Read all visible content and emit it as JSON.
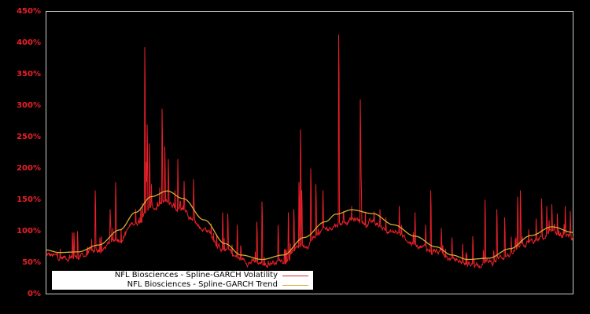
{
  "chart_data": {
    "type": "line",
    "title": "",
    "xlabel": "",
    "ylabel": "",
    "ylim": [
      0,
      450
    ],
    "y_tick_labels": [
      "0%",
      "50%",
      "100%",
      "150%",
      "200%",
      "250%",
      "300%",
      "350%",
      "400%",
      "450%"
    ],
    "y_tick_values": [
      0,
      50,
      100,
      150,
      200,
      250,
      300,
      350,
      400,
      450
    ],
    "x_tick_labels": [],
    "grid": false,
    "legend_position": "lower-left",
    "background": "#000000",
    "axes_color": "#cccccc",
    "tick_label_color": "#e8202a",
    "series": [
      {
        "name": "NFL Biosciences - Spline-GARCH Volatility",
        "color": "#e8202a",
        "description": "Noisy daily volatility oscillating around the trend with frequent spikes",
        "spikes": [
          {
            "x": 0.06,
            "y": 100
          },
          {
            "x": 0.05,
            "y": 98
          },
          {
            "x": 0.053,
            "y": 98
          },
          {
            "x": 0.093,
            "y": 165
          },
          {
            "x": 0.102,
            "y": 90
          },
          {
            "x": 0.122,
            "y": 135
          },
          {
            "x": 0.132,
            "y": 178
          },
          {
            "x": 0.15,
            "y": 100
          },
          {
            "x": 0.17,
            "y": 135
          },
          {
            "x": 0.183,
            "y": 145
          },
          {
            "x": 0.19,
            "y": 210
          },
          {
            "x": 0.2,
            "y": 175
          },
          {
            "x": 0.187,
            "y": 393
          },
          {
            "x": 0.192,
            "y": 270
          },
          {
            "x": 0.196,
            "y": 240
          },
          {
            "x": 0.22,
            "y": 295
          },
          {
            "x": 0.225,
            "y": 235
          },
          {
            "x": 0.232,
            "y": 215
          },
          {
            "x": 0.25,
            "y": 215
          },
          {
            "x": 0.245,
            "y": 165
          },
          {
            "x": 0.262,
            "y": 180
          },
          {
            "x": 0.28,
            "y": 183
          },
          {
            "x": 0.318,
            "y": 97
          },
          {
            "x": 0.335,
            "y": 130
          },
          {
            "x": 0.345,
            "y": 128
          },
          {
            "x": 0.363,
            "y": 110
          },
          {
            "x": 0.4,
            "y": 115
          },
          {
            "x": 0.41,
            "y": 147
          },
          {
            "x": 0.44,
            "y": 110
          },
          {
            "x": 0.46,
            "y": 130
          },
          {
            "x": 0.47,
            "y": 135
          },
          {
            "x": 0.48,
            "y": 178
          },
          {
            "x": 0.485,
            "y": 165
          },
          {
            "x": 0.502,
            "y": 200
          },
          {
            "x": 0.512,
            "y": 175
          },
          {
            "x": 0.483,
            "y": 262
          },
          {
            "x": 0.525,
            "y": 165
          },
          {
            "x": 0.555,
            "y": 413
          },
          {
            "x": 0.58,
            "y": 140
          },
          {
            "x": 0.596,
            "y": 310
          },
          {
            "x": 0.598,
            "y": 190
          },
          {
            "x": 0.62,
            "y": 115
          },
          {
            "x": 0.645,
            "y": 122
          },
          {
            "x": 0.67,
            "y": 140
          },
          {
            "x": 0.7,
            "y": 130
          },
          {
            "x": 0.72,
            "y": 110
          },
          {
            "x": 0.73,
            "y": 165
          },
          {
            "x": 0.75,
            "y": 105
          },
          {
            "x": 0.77,
            "y": 90
          },
          {
            "x": 0.79,
            "y": 80
          },
          {
            "x": 0.81,
            "y": 92
          },
          {
            "x": 0.83,
            "y": 70
          },
          {
            "x": 0.87,
            "y": 80
          },
          {
            "x": 0.89,
            "y": 88
          },
          {
            "x": 0.85,
            "y": 65
          },
          {
            "x": 0.8325,
            "y": 150
          },
          {
            "x": 0.855,
            "y": 135
          },
          {
            "x": 0.87,
            "y": 122
          },
          {
            "x": 0.895,
            "y": 155
          },
          {
            "x": 0.9,
            "y": 165
          },
          {
            "x": 0.93,
            "y": 120
          },
          {
            "x": 0.94,
            "y": 152
          },
          {
            "x": 0.95,
            "y": 140
          },
          {
            "x": 0.96,
            "y": 143
          },
          {
            "x": 0.97,
            "y": 128
          },
          {
            "x": 0.985,
            "y": 140
          },
          {
            "x": 0.995,
            "y": 132
          }
        ]
      },
      {
        "name": "NFL Biosciences - Spline-GARCH Trend",
        "color": "#d4b030",
        "x": [
          0.0,
          0.025,
          0.06,
          0.1,
          0.14,
          0.17,
          0.2,
          0.23,
          0.26,
          0.3,
          0.34,
          0.37,
          0.41,
          0.45,
          0.49,
          0.53,
          0.55,
          0.58,
          0.62,
          0.66,
          0.7,
          0.74,
          0.77,
          0.8,
          0.84,
          0.88,
          0.92,
          0.96,
          1.0
        ],
        "values": [
          70,
          66,
          67,
          78,
          102,
          130,
          155,
          164,
          152,
          118,
          80,
          62,
          55,
          62,
          90,
          115,
          127,
          134,
          128,
          110,
          92,
          75,
          62,
          55,
          57,
          72,
          93,
          107,
          98
        ]
      }
    ]
  },
  "legend": {
    "items": [
      {
        "label": "NFL Biosciences - Spline-GARCH Volatility",
        "color": "#e8202a"
      },
      {
        "label": "NFL Biosciences - Spline-GARCH Trend",
        "color": "#d4b030"
      }
    ]
  }
}
